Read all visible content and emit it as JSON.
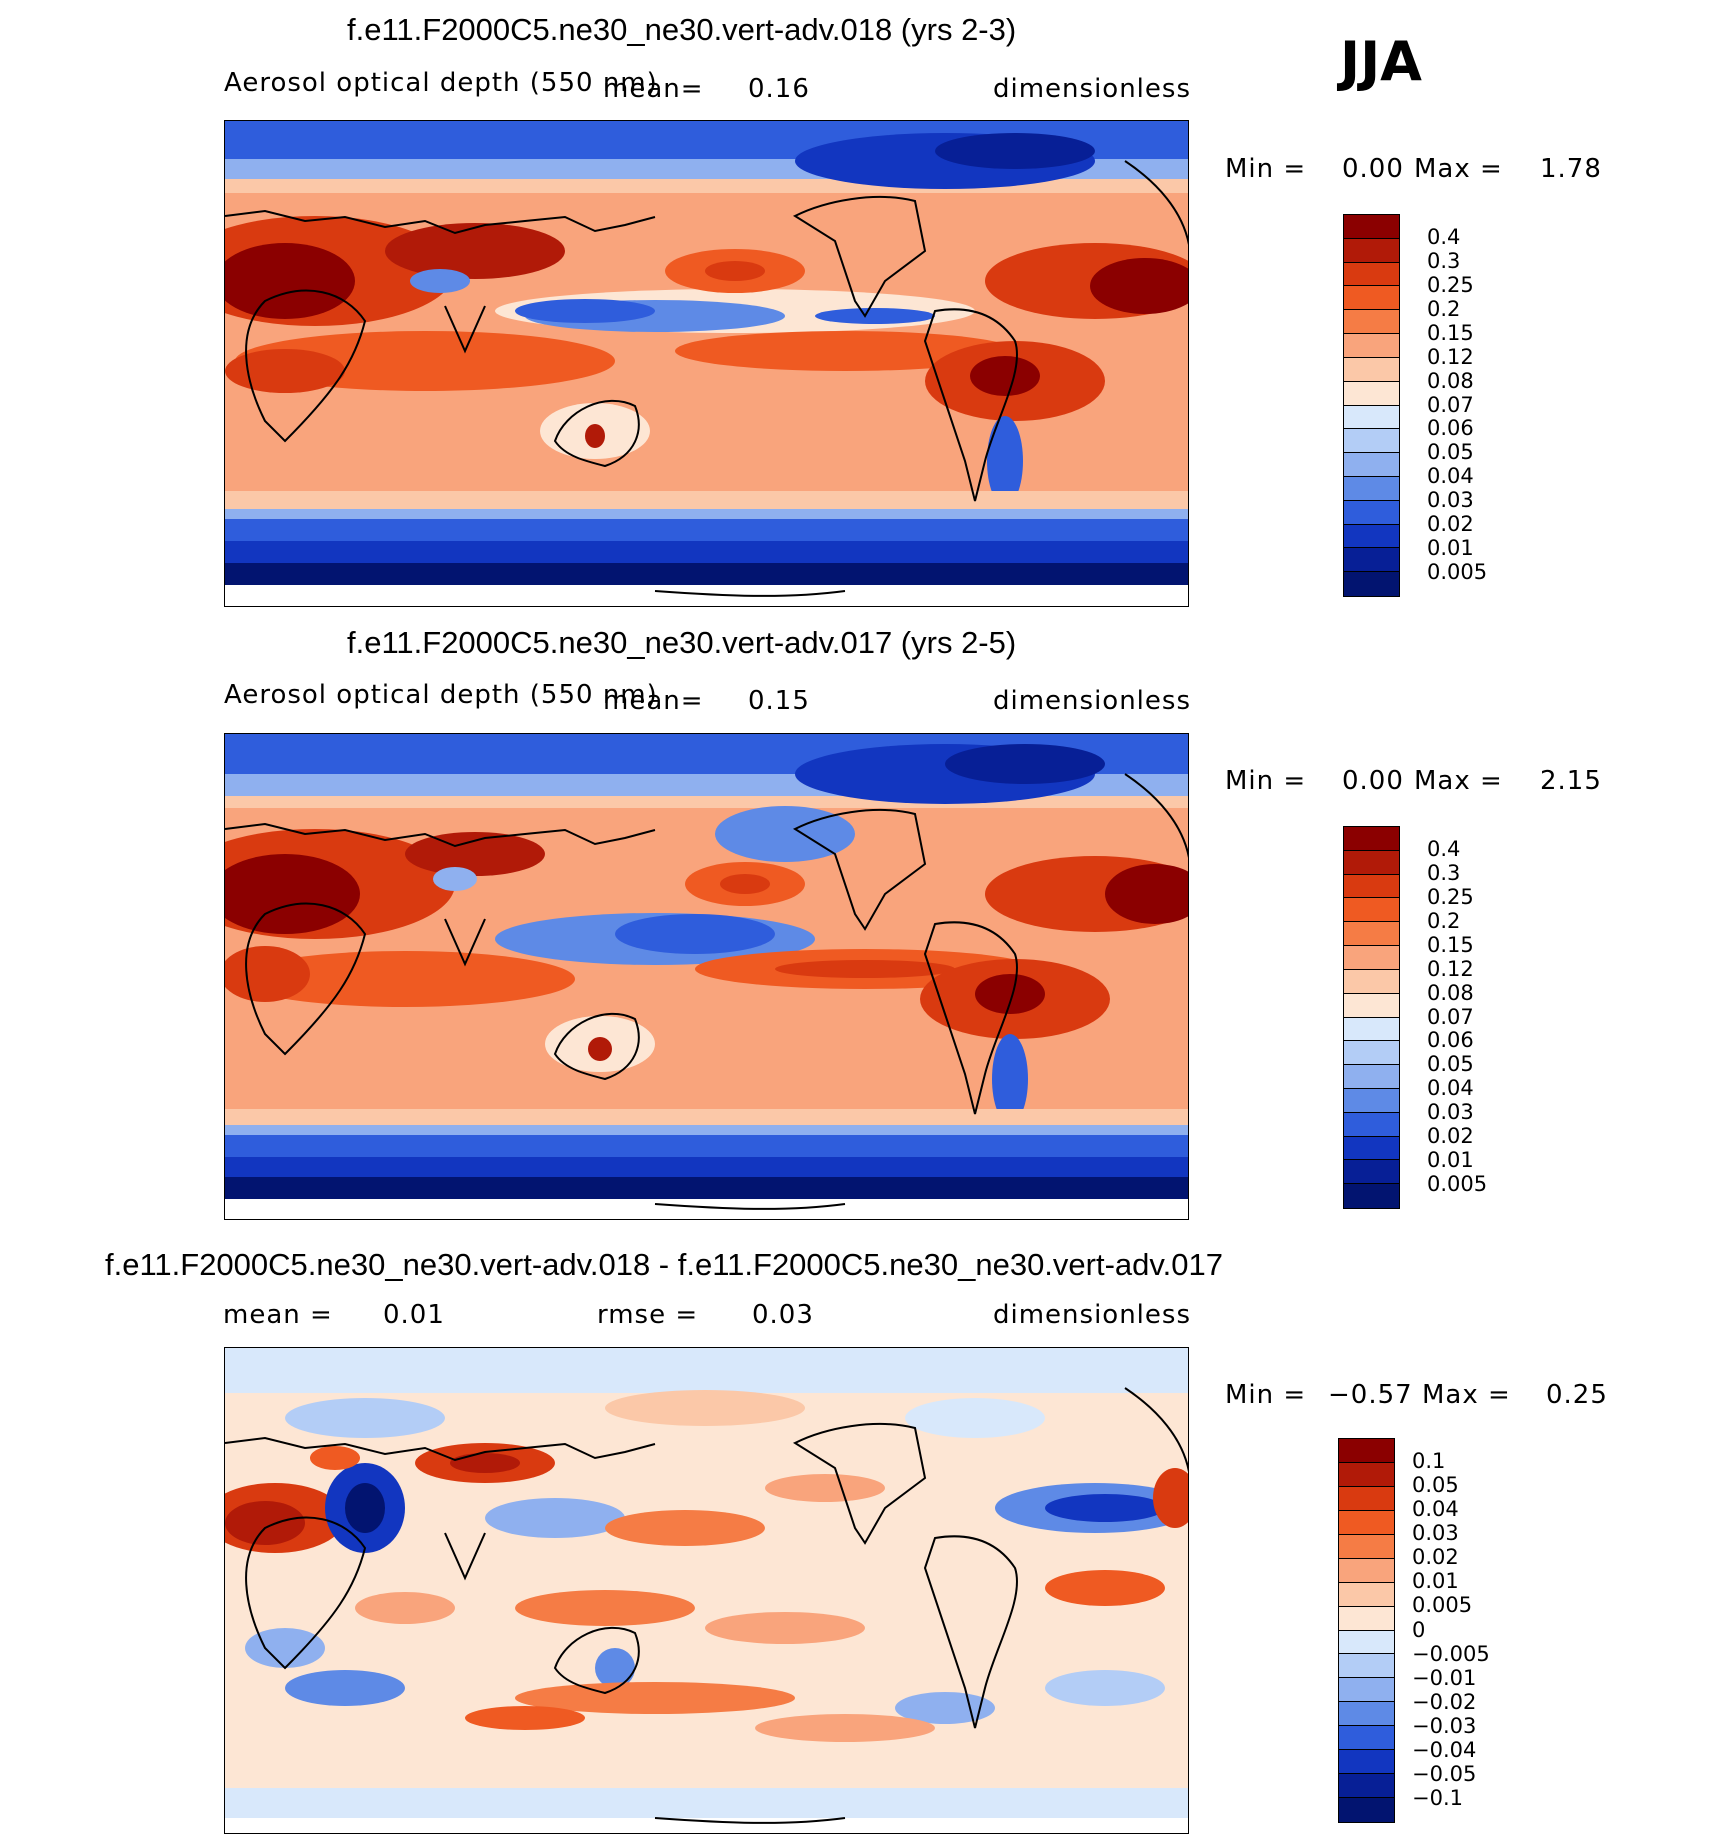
{
  "season": "JJA",
  "panels": [
    {
      "title": "f.e11.F2000C5.ne30_ne30.vert-adv.018 (yrs 2-3)",
      "variable": "Aerosol optical depth (550 nm)",
      "mean_label": "mean=",
      "mean_value": "0.16",
      "units": "dimensionless",
      "min_label": "Min =",
      "min_value": "0.00",
      "max_label": "Max =",
      "max_value": "1.78",
      "map_kind": "field"
    },
    {
      "title": "f.e11.F2000C5.ne30_ne30.vert-adv.017 (yrs 2-5)",
      "variable": "Aerosol optical depth (550 nm)",
      "mean_label": "mean=",
      "mean_value": "0.15",
      "units": "dimensionless",
      "min_label": "Min =",
      "min_value": "0.00",
      "max_label": "Max =",
      "max_value": "2.15",
      "map_kind": "field"
    },
    {
      "title": "f.e11.F2000C5.ne30_ne30.vert-adv.018 - f.e11.F2000C5.ne30_ne30.vert-adv.017",
      "mean_label": "mean =",
      "mean_value": "0.01",
      "rmse_label": "rmse =",
      "rmse_value": "0.03",
      "units": "dimensionless",
      "min_label": "Min =",
      "min_value": "−0.57",
      "max_label": "Max =",
      "max_value": "0.25",
      "map_kind": "diff"
    }
  ],
  "colorbar_field": {
    "labels": [
      "0.4",
      "0.3",
      "0.25",
      "0.2",
      "0.15",
      "0.12",
      "0.08",
      "0.07",
      "0.06",
      "0.05",
      "0.04",
      "0.03",
      "0.02",
      "0.01",
      "0.005"
    ],
    "colors": [
      "#8b0000",
      "#b11a08",
      "#d93a10",
      "#ef5a22",
      "#f57c45",
      "#f9a47c",
      "#fbc8a8",
      "#fde6d4",
      "#d8e8fb",
      "#b3cdf6",
      "#8fb0ef",
      "#5e8ae6",
      "#2f5ddc",
      "#1236c0",
      "#071f96",
      "#021470"
    ]
  },
  "colorbar_diff": {
    "labels": [
      "0.1",
      "0.05",
      "0.04",
      "0.03",
      "0.02",
      "0.01",
      "0.005",
      "0",
      "−0.005",
      "−0.01",
      "−0.02",
      "−0.03",
      "−0.04",
      "−0.05",
      "−0.1"
    ],
    "colors": [
      "#8b0000",
      "#b11a08",
      "#d93a10",
      "#ef5a22",
      "#f57c45",
      "#f9a47c",
      "#fbc8a8",
      "#fde6d4",
      "#d8e8fb",
      "#b3cdf6",
      "#8fb0ef",
      "#5e8ae6",
      "#2f5ddc",
      "#1236c0",
      "#071f96",
      "#021470"
    ]
  }
}
